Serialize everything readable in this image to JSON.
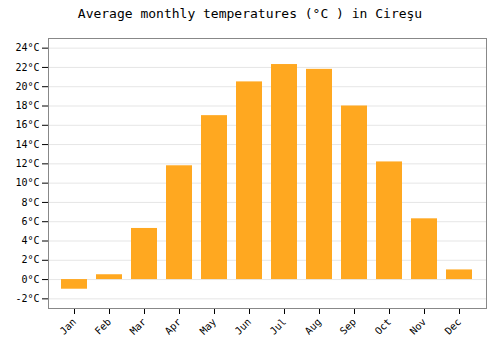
{
  "chart_data": {
    "type": "bar",
    "title": "Average monthly temperatures (°C ) in Cireşu",
    "categories": [
      "Jan",
      "Feb",
      "Mar",
      "Apr",
      "May",
      "Jun",
      "Jul",
      "Aug",
      "Sep",
      "Oct",
      "Nov",
      "Dec"
    ],
    "values": [
      -1.0,
      0.5,
      5.3,
      11.8,
      17.0,
      20.5,
      22.3,
      21.8,
      18.0,
      12.2,
      6.3,
      1.0
    ],
    "color": "#FFA820",
    "ylim": [
      -3,
      25
    ],
    "yticks": [
      {
        "value": -2,
        "label": "-2°C"
      },
      {
        "value": 0,
        "label": "0°C"
      },
      {
        "value": 2,
        "label": "2°C"
      },
      {
        "value": 4,
        "label": "4°C"
      },
      {
        "value": 6,
        "label": "6°C"
      },
      {
        "value": 8,
        "label": "8°C"
      },
      {
        "value": 10,
        "label": "10°C"
      },
      {
        "value": 12,
        "label": "12°C"
      },
      {
        "value": 14,
        "label": "14°C"
      },
      {
        "value": 16,
        "label": "16°C"
      },
      {
        "value": 18,
        "label": "18°C"
      },
      {
        "value": 20,
        "label": "20°C"
      },
      {
        "value": 22,
        "label": "22°C"
      },
      {
        "value": 24,
        "label": "24°C"
      }
    ],
    "grid": true
  }
}
